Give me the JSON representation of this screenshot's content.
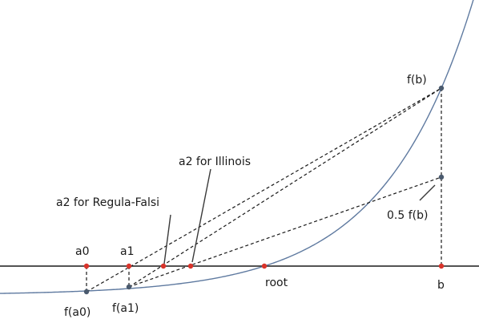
{
  "labels": {
    "a0": "a0",
    "a1": "a1",
    "fa0": "f(a0)",
    "fa1": "f(a1)",
    "root": "root",
    "b": "b",
    "fb": "f(b)",
    "half_fb": "0.5 f(b)",
    "a2_regula_falsi": "a2 for Regula-Falsi",
    "a2_illinois": "a2 for Illinois"
  },
  "colors": {
    "curve": "#5f7aa0",
    "axis": "#1a1a1a",
    "secant": "#1a1a1a",
    "point_on_axis": "#d9342b",
    "point_on_curve": "#4a5a6e"
  }
}
